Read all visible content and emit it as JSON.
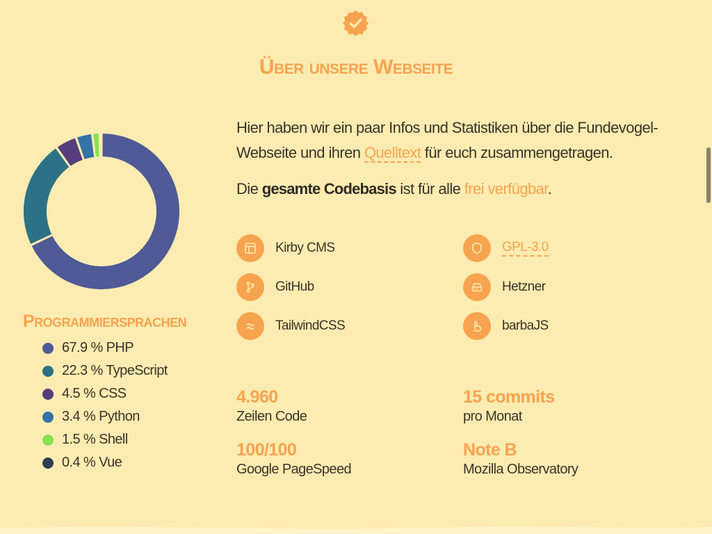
{
  "header": {
    "badge_icon": "check-badge-icon",
    "title": "Über unsere Webseite"
  },
  "languages": {
    "heading": "Programmiersprachen",
    "items": [
      {
        "label": "67.9 % PHP",
        "value": 67.9,
        "color": "#4f5a96"
      },
      {
        "label": "22.3 % TypeScript",
        "value": 22.3,
        "color": "#2c7185"
      },
      {
        "label": "4.5 % CSS",
        "value": 4.5,
        "color": "#563d7c"
      },
      {
        "label": "3.4 % Python",
        "value": 3.4,
        "color": "#3572a5"
      },
      {
        "label": "1.5 % Shell",
        "value": 1.5,
        "color": "#89e051"
      },
      {
        "label": "0.4 % Vue",
        "value": 0.4,
        "color": "#2c3e50"
      }
    ]
  },
  "intro": {
    "p1_before": "Hier haben wir ein paar Infos und Statistiken über die Fundevogel-Webseite und ihren ",
    "p1_link": "Quelltext",
    "p1_after": " für euch zusammengetragen.",
    "p2_before": "Die ",
    "p2_strong": "gesamte Codebasis",
    "p2_mid": " ist für alle ",
    "p2_accent": "frei verfügbar",
    "p2_after": "."
  },
  "tech": [
    {
      "label": "Kirby CMS",
      "icon": "layout-icon",
      "link": false
    },
    {
      "label": "GPL-3.0",
      "icon": "shield-icon",
      "link": true
    },
    {
      "label": "GitHub",
      "icon": "git-branch-icon",
      "link": false
    },
    {
      "label": "Hetzner",
      "icon": "server-icon",
      "link": false
    },
    {
      "label": "TailwindCSS",
      "icon": "tailwind-icon",
      "link": false
    },
    {
      "label": "barbaJS",
      "icon": "barba-icon",
      "link": false
    }
  ],
  "stats": [
    {
      "value": "4.960",
      "label": "Zeilen Code"
    },
    {
      "value": "15 commits",
      "label": "pro Monat"
    },
    {
      "value": "100/100",
      "label": "Google PageSpeed"
    },
    {
      "value": "Note B",
      "label": "Mozilla Observatory"
    }
  ],
  "colors": {
    "background": "#fdecb1",
    "accent": "#f7a34f",
    "text": "#3a3328"
  }
}
